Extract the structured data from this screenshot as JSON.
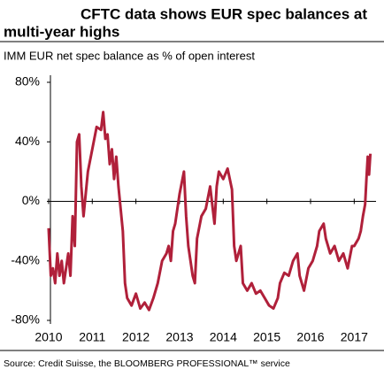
{
  "chart_data": {
    "type": "line",
    "title": [
      "CFTC data shows EUR spec balances at",
      "multi-year highs"
    ],
    "subtitle": "IMM EUR net spec balance as % of open interest",
    "source": "Source: Credit Suisse, the BLOOMBERG PROFESSIONAL™ service",
    "x": [
      2010.0,
      2010.05,
      2010.1,
      2010.15,
      2010.2,
      2010.25,
      2010.3,
      2010.35,
      2010.4,
      2010.45,
      2010.5,
      2010.55,
      2010.6,
      2010.65,
      2010.7,
      2010.75,
      2010.8,
      2010.9,
      2011.0,
      2011.1,
      2011.2,
      2011.25,
      2011.3,
      2011.35,
      2011.4,
      2011.45,
      2011.5,
      2011.55,
      2011.6,
      2011.65,
      2011.7,
      2011.75,
      2011.8,
      2011.9,
      2012.0,
      2012.1,
      2012.2,
      2012.3,
      2012.4,
      2012.5,
      2012.6,
      2012.7,
      2012.75,
      2012.8,
      2012.85,
      2012.9,
      2013.0,
      2013.1,
      2013.15,
      2013.2,
      2013.3,
      2013.35,
      2013.4,
      2013.5,
      2013.6,
      2013.7,
      2013.8,
      2013.85,
      2013.9,
      2014.0,
      2014.1,
      2014.2,
      2014.25,
      2014.3,
      2014.4,
      2014.45,
      2014.55,
      2014.65,
      2014.75,
      2014.85,
      2014.95,
      2015.05,
      2015.15,
      2015.25,
      2015.3,
      2015.4,
      2015.5,
      2015.6,
      2015.7,
      2015.75,
      2015.85,
      2015.95,
      2016.05,
      2016.15,
      2016.2,
      2016.3,
      2016.35,
      2016.45,
      2016.55,
      2016.65,
      2016.75,
      2016.85,
      2016.95,
      2017.0,
      2017.1,
      2017.15,
      2017.2,
      2017.25,
      2017.28,
      2017.31,
      2017.34,
      2017.37
    ],
    "series": [
      {
        "name": "IMM EUR net spec balance",
        "color": "#b0203a",
        "values": [
          -18,
          -50,
          -45,
          -55,
          -35,
          -50,
          -40,
          -55,
          -45,
          -35,
          -50,
          -10,
          -30,
          40,
          45,
          10,
          -10,
          20,
          35,
          50,
          48,
          60,
          42,
          45,
          25,
          35,
          15,
          30,
          10,
          -5,
          -20,
          -55,
          -65,
          -70,
          -62,
          -72,
          -68,
          -73,
          -65,
          -55,
          -40,
          -35,
          -30,
          -40,
          -20,
          -15,
          5,
          20,
          -10,
          -30,
          -50,
          -55,
          -25,
          -10,
          -5,
          10,
          -15,
          10,
          20,
          15,
          22,
          8,
          -30,
          -40,
          -30,
          -55,
          -60,
          -55,
          -62,
          -60,
          -65,
          -70,
          -72,
          -65,
          -55,
          -48,
          -50,
          -40,
          -35,
          -50,
          -60,
          -45,
          -40,
          -30,
          -20,
          -15,
          -25,
          -35,
          -30,
          -40,
          -35,
          -45,
          -30,
          -30,
          -25,
          -20,
          -10,
          -2,
          15,
          30,
          18,
          32
        ]
      }
    ],
    "xlim": [
      2009.9,
      2017.5
    ],
    "xticks": [
      2010,
      2011,
      2012,
      2013,
      2014,
      2015,
      2016,
      2017
    ],
    "ylim": [
      -80,
      80
    ],
    "yticks": [
      {
        "value": -80,
        "label": "-80%"
      },
      {
        "value": -40,
        "label": "-40%"
      },
      {
        "value": 0,
        "label": "0%"
      },
      {
        "value": 40,
        "label": "40%"
      },
      {
        "value": 80,
        "label": "80%"
      }
    ]
  }
}
